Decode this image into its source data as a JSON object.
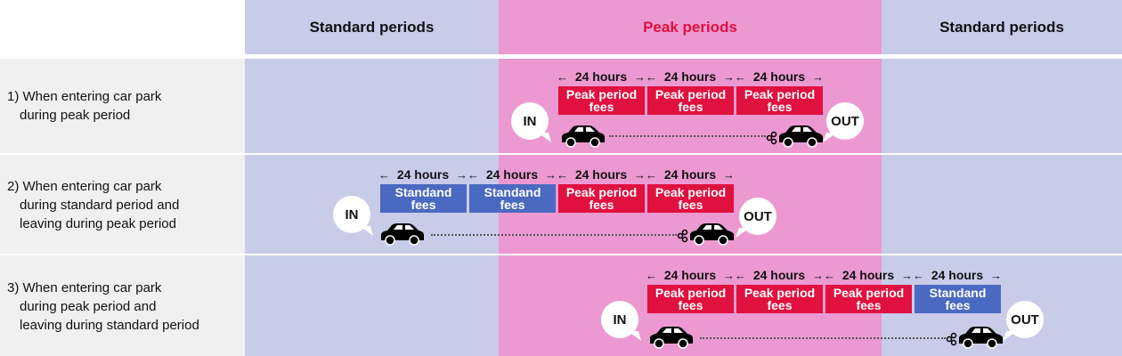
{
  "colors": {
    "standard_bg": "#c8cce9",
    "peak_bg": "#ec99d1",
    "label_bg": "#f0f0f0",
    "peak_fee": "#e0103f",
    "standard_fee": "#4b69c0",
    "peak_title": "#e0103f"
  },
  "header": {
    "standard_left": "Standard periods",
    "peak": "Peak periods",
    "standard_right": "Standard periods"
  },
  "rows": [
    {
      "label": [
        "1) When entering car park",
        "during peak period"
      ],
      "hours": [
        "24 hours",
        "24 hours",
        "24 hours"
      ],
      "fees": [
        {
          "type": "peak",
          "line1": "Peak period",
          "line2": "fees"
        },
        {
          "type": "peak",
          "line1": "Peak period",
          "line2": "fees"
        },
        {
          "type": "peak",
          "line1": "Peak period",
          "line2": "fees"
        }
      ],
      "in_label": "IN",
      "out_label": "OUT"
    },
    {
      "label": [
        "2) When entering car park",
        "during standard period and",
        "leaving during peak period"
      ],
      "hours": [
        "24 hours",
        "24 hours",
        "24 hours",
        "24 hours"
      ],
      "fees": [
        {
          "type": "std",
          "line1": "Standand",
          "line2": "fees"
        },
        {
          "type": "std",
          "line1": "Standand",
          "line2": "fees"
        },
        {
          "type": "peak",
          "line1": "Peak period",
          "line2": "fees"
        },
        {
          "type": "peak",
          "line1": "Peak period",
          "line2": "fees"
        }
      ],
      "in_label": "IN",
      "out_label": "OUT"
    },
    {
      "label": [
        "3) When entering car park",
        "during peak period and",
        "leaving during standard period"
      ],
      "hours": [
        "24 hours",
        "24 hours",
        "24 hours",
        "24 hours"
      ],
      "fees": [
        {
          "type": "peak",
          "line1": "Peak period",
          "line2": "fees"
        },
        {
          "type": "peak",
          "line1": "Peak period",
          "line2": "fees"
        },
        {
          "type": "peak",
          "line1": "Peak period",
          "line2": "fees"
        },
        {
          "type": "std",
          "line1": "Standand",
          "line2": "fees"
        }
      ],
      "in_label": "IN",
      "out_label": "OUT"
    }
  ],
  "arrows": {
    "left": "←",
    "right": "→"
  },
  "icons": {
    "car_in": "car-icon",
    "car_out": "car-exhaust-icon"
  }
}
